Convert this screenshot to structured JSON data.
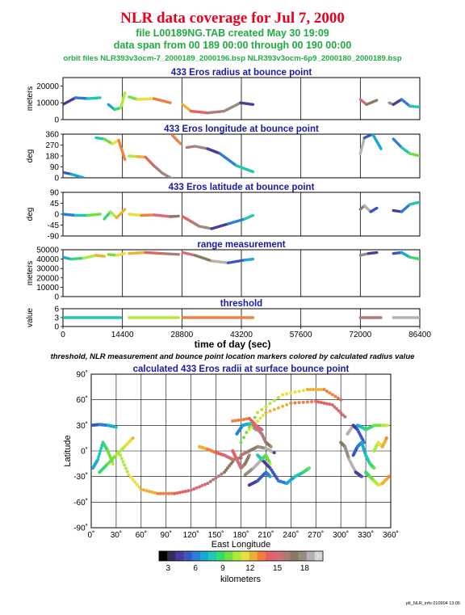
{
  "header": {
    "title": "NLR data coverage for Jul 7, 2000",
    "file_line": "file L00189NG.TAB created May 30 19:09",
    "span_line": "data span from 00 189 00:00 through 00 190 00:00",
    "orbit_line": "orbit files NLR393v3ocm-7_2000189_2000196.bsp NLR393v3ocm-6p9_2000180_2000189.bsp"
  },
  "colors": {
    "title_red": "#e8001c",
    "header_green": "#22aa44",
    "panel_title_blue": "#1a1aa8",
    "axis": "#000000"
  },
  "time_axis": {
    "label": "time of day (sec)",
    "ticks": [
      "0",
      "14400",
      "28800",
      "43200",
      "57600",
      "72000",
      "86400"
    ]
  },
  "caption": "threshold, NLR measurement and bounce point location markers colored by calculated radius value",
  "footer": "plt_NLR_info 010904 13:05",
  "colorbar": {
    "label": "kilometers",
    "ticks": [
      "3",
      "6",
      "9",
      "12",
      "15",
      "18"
    ],
    "colors": [
      "#000000",
      "#3a2a5a",
      "#4a3a9a",
      "#3858c0",
      "#2a7ed8",
      "#18a8d8",
      "#20c8b0",
      "#38d870",
      "#70e040",
      "#b0e840",
      "#e8e040",
      "#f0b030",
      "#f08040",
      "#e86060",
      "#d86a7a",
      "#b07a78",
      "#8c7a60",
      "#9a8a80",
      "#b8b0b0",
      "#d8d8d8"
    ]
  },
  "chart_data": [
    {
      "type": "scatter",
      "title": "433 Eros radius at bounce point",
      "xlabel": "",
      "ylabel": "meters",
      "xlim": [
        0,
        86400
      ],
      "ylim": [
        0,
        25000
      ],
      "yticks": [
        "20000",
        "10000",
        "0"
      ],
      "yticks_values": [
        20000,
        10000,
        0
      ],
      "segments": [
        {
          "x": [
            0,
            3000,
            6000,
            9000
          ],
          "y": [
            9000,
            13000,
            12500,
            13000
          ]
        },
        {
          "x": [
            11000,
            12500,
            14000,
            15000
          ],
          "y": [
            9000,
            6000,
            7000,
            16000
          ]
        },
        {
          "x": [
            16000,
            18000,
            22000,
            26000
          ],
          "y": [
            13500,
            12000,
            12500,
            10000
          ]
        },
        {
          "x": [
            29000,
            31000,
            35000,
            39000,
            43000,
            46000
          ],
          "y": [
            9000,
            5000,
            4000,
            5000,
            10000,
            9000
          ]
        },
        {
          "x": [
            72000,
            73500,
            76000
          ],
          "y": [
            12000,
            9000,
            11500
          ]
        },
        {
          "x": [
            79000,
            80000,
            82000,
            84000,
            86400
          ],
          "y": [
            10000,
            9000,
            12000,
            8000,
            7500
          ]
        }
      ]
    },
    {
      "type": "scatter",
      "title": "433 Eros longitude at bounce point",
      "xlabel": "",
      "ylabel": "deg",
      "xlim": [
        0,
        86400
      ],
      "ylim": [
        0,
        360
      ],
      "yticks": [
        "360",
        "270",
        "180",
        "90",
        "0"
      ],
      "yticks_values": [
        360,
        270,
        180,
        90,
        0
      ],
      "segments": [
        {
          "x": [
            0,
            2000,
            5000
          ],
          "y": [
            45,
            30,
            0
          ]
        },
        {
          "x": [
            8000,
            10000,
            12000,
            13500,
            15000
          ],
          "y": [
            330,
            320,
            280,
            310,
            150
          ]
        },
        {
          "x": [
            16000,
            18000,
            20000,
            22000,
            24000,
            26000
          ],
          "y": [
            180,
            175,
            170,
            100,
            40,
            0
          ]
        },
        {
          "x": [
            26500,
            28500
          ],
          "y": [
            350,
            280
          ]
        },
        {
          "x": [
            30000,
            32000,
            35000,
            38000,
            42000,
            46000
          ],
          "y": [
            250,
            260,
            240,
            200,
            100,
            50
          ]
        },
        {
          "x": [
            72000,
            73000,
            75000,
            77000
          ],
          "y": [
            200,
            330,
            360,
            240
          ]
        },
        {
          "x": [
            80000,
            82000,
            84000,
            86400
          ],
          "y": [
            320,
            250,
            200,
            180
          ]
        }
      ]
    },
    {
      "type": "scatter",
      "title": "433 Eros latitude at bounce point",
      "xlabel": "",
      "ylabel": "deg",
      "xlim": [
        0,
        86400
      ],
      "ylim": [
        -90,
        90
      ],
      "yticks": [
        "90",
        "45",
        "0",
        "-45",
        "-90"
      ],
      "yticks_values": [
        90,
        45,
        0,
        -45,
        -90
      ],
      "segments": [
        {
          "x": [
            0,
            3000,
            6000,
            9000
          ],
          "y": [
            0,
            -5,
            -5,
            0
          ]
        },
        {
          "x": [
            10000,
            11500,
            13000,
            15000
          ],
          "y": [
            -20,
            10,
            -15,
            20
          ]
        },
        {
          "x": [
            16000,
            19000,
            22000,
            26000,
            28000
          ],
          "y": [
            0,
            -5,
            -3,
            -10,
            -8
          ]
        },
        {
          "x": [
            29000,
            31000,
            33000,
            36000,
            40000,
            44000,
            46000
          ],
          "y": [
            -10,
            -30,
            -50,
            -60,
            -40,
            -20,
            -5
          ]
        },
        {
          "x": [
            72000,
            73000,
            74500,
            76000
          ],
          "y": [
            20,
            35,
            10,
            25
          ]
        },
        {
          "x": [
            80000,
            82000,
            84000,
            86400
          ],
          "y": [
            15,
            10,
            40,
            50
          ]
        }
      ]
    },
    {
      "type": "scatter",
      "title": "range measurement",
      "xlabel": "",
      "ylabel": "meters",
      "xlim": [
        0,
        86400
      ],
      "ylim": [
        0,
        50000
      ],
      "yticks": [
        "50000",
        "40000",
        "30000",
        "20000",
        "10000",
        "0"
      ],
      "yticks_values": [
        50000,
        40000,
        30000,
        20000,
        10000,
        0
      ],
      "segments": [
        {
          "x": [
            0,
            2000,
            5000,
            8000,
            10000
          ],
          "y": [
            42000,
            40000,
            41000,
            44000,
            43000
          ]
        },
        {
          "x": [
            11000,
            13000,
            15000
          ],
          "y": [
            45000,
            44000,
            46000
          ]
        },
        {
          "x": [
            16000,
            20000,
            24000,
            28000
          ],
          "y": [
            46000,
            47000,
            46000,
            45000
          ]
        },
        {
          "x": [
            29000,
            32000,
            36000,
            40000,
            44000,
            46000
          ],
          "y": [
            47000,
            44000,
            38000,
            36000,
            39000,
            40000
          ]
        },
        {
          "x": [
            72000,
            74000,
            76000
          ],
          "y": [
            44000,
            46000,
            47000
          ]
        },
        {
          "x": [
            80000,
            82000,
            84000,
            86400
          ],
          "y": [
            46000,
            47000,
            42000,
            40000
          ]
        }
      ]
    },
    {
      "type": "scatter",
      "title": "threshold",
      "xlabel": "",
      "ylabel": "value",
      "xlim": [
        0,
        86400
      ],
      "ylim": [
        0,
        6
      ],
      "yticks": [
        "6",
        "3",
        "0"
      ],
      "yticks_values": [
        6,
        3,
        0
      ],
      "segments": [
        {
          "x": [
            0,
            14000
          ],
          "y": [
            3,
            3
          ]
        },
        {
          "x": [
            16000,
            28000
          ],
          "y": [
            3,
            3
          ]
        },
        {
          "x": [
            29000,
            46000
          ],
          "y": [
            3,
            3
          ]
        },
        {
          "x": [
            72000,
            77000
          ],
          "y": [
            3,
            3
          ]
        },
        {
          "x": [
            80000,
            86400
          ],
          "y": [
            3,
            3
          ]
        }
      ]
    },
    {
      "type": "scatter",
      "title": "calculated 433 Eros radii at surface bounce point",
      "xlabel": "East Longitude",
      "ylabel": "Latitude",
      "xlim": [
        0,
        360
      ],
      "ylim": [
        -90,
        90
      ],
      "xticks": [
        "0˚",
        "30˚",
        "60˚",
        "90˚",
        "120˚",
        "150˚",
        "180˚",
        "210˚",
        "240˚",
        "270˚",
        "300˚",
        "330˚",
        "360˚"
      ],
      "xticks_values": [
        0,
        30,
        60,
        90,
        120,
        150,
        180,
        210,
        240,
        270,
        300,
        330,
        360
      ],
      "yticks": [
        "90˚",
        "60˚",
        "30˚",
        "0˚",
        "-30˚",
        "-60˚",
        "-90˚"
      ],
      "yticks_values": [
        90,
        60,
        30,
        0,
        -30,
        -60,
        -90
      ],
      "segments": [
        {
          "x": [
            0,
            10,
            20,
            30
          ],
          "y": [
            30,
            31,
            30,
            28
          ]
        },
        {
          "x": [
            2,
            8,
            14,
            20,
            26
          ],
          "y": [
            -20,
            -10,
            10,
            0,
            -15
          ]
        },
        {
          "x": [
            10,
            20,
            30,
            40,
            50
          ],
          "y": [
            -25,
            -15,
            -5,
            5,
            15
          ]
        },
        {
          "x": [
            35,
            45,
            60,
            80,
            100,
            120,
            140,
            160,
            172
          ],
          "y": [
            -5,
            -28,
            -45,
            -50,
            -50,
            -46,
            -38,
            -25,
            -10
          ]
        },
        {
          "x": [
            130,
            140,
            150,
            160,
            170,
            180
          ],
          "y": [
            5,
            2,
            -2,
            -5,
            -10,
            -8
          ]
        },
        {
          "x": [
            170,
            175,
            180,
            185,
            190
          ],
          "y": [
            0,
            -10,
            -20,
            -15,
            -5
          ]
        },
        {
          "x": [
            180,
            190,
            200,
            210,
            220
          ],
          "y": [
            -5,
            0,
            5,
            3,
            -2
          ]
        },
        {
          "x": [
            185,
            195,
            205,
            215,
            225,
            235,
            245,
            255,
            262
          ],
          "y": [
            -28,
            -20,
            -10,
            -20,
            -35,
            -38,
            -30,
            -25,
            -20
          ]
        },
        {
          "x": [
            190,
            200,
            210,
            215
          ],
          "y": [
            -40,
            -35,
            -25,
            -30
          ]
        },
        {
          "x": [
            175,
            182,
            190,
            198
          ],
          "y": [
            20,
            30,
            32,
            25
          ]
        },
        {
          "x": [
            200,
            205,
            210,
            215
          ],
          "y": [
            -5,
            -10,
            -5,
            -15
          ]
        },
        {
          "x": [
            180,
            200,
            230,
            260,
            280,
            300
          ],
          "y": [
            10,
            45,
            66,
            72,
            72,
            60
          ]
        },
        {
          "x": [
            190,
            210,
            240,
            270,
            290,
            305
          ],
          "y": [
            25,
            45,
            56,
            58,
            54,
            40
          ]
        },
        {
          "x": [
            170,
            190,
            200,
            205
          ],
          "y": [
            35,
            38,
            28,
            25
          ]
        },
        {
          "x": [
            195,
            205,
            210,
            216
          ],
          "y": [
            30,
            20,
            10,
            5
          ]
        },
        {
          "x": [
            300,
            305,
            310,
            318,
            325
          ],
          "y": [
            10,
            5,
            -10,
            -25,
            -30
          ]
        },
        {
          "x": [
            308,
            315,
            320,
            328
          ],
          "y": [
            20,
            30,
            25,
            10
          ]
        },
        {
          "x": [
            315,
            320,
            325,
            330,
            335,
            340
          ],
          "y": [
            -5,
            5,
            10,
            -5,
            -15,
            -20
          ]
        },
        {
          "x": [
            320,
            325,
            330,
            340,
            350,
            356
          ],
          "y": [
            30,
            28,
            25,
            30,
            30,
            30
          ]
        },
        {
          "x": [
            330,
            335,
            340,
            345,
            350,
            358
          ],
          "y": [
            -25,
            -30,
            -35,
            -40,
            -38,
            -30
          ]
        },
        {
          "x": [
            340,
            345,
            350,
            355
          ],
          "y": [
            0,
            10,
            5,
            15
          ]
        }
      ]
    }
  ]
}
